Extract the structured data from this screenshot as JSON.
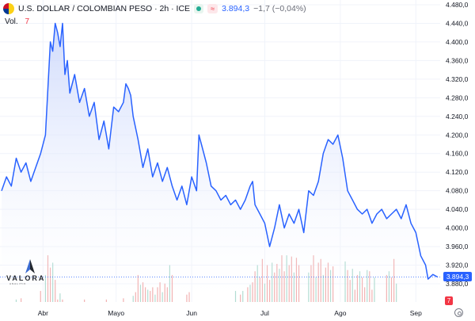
{
  "header": {
    "title": "U.S. DOLLAR / COLOMBIAN PESO · 2h · ICE",
    "last_price": "3.894,3",
    "change": "−1,7 (−0,04%)"
  },
  "volume_label": "Vol.",
  "volume_value": "7",
  "logo": {
    "name": "VALORA",
    "subtitle": "ANALITIK"
  },
  "last_price_tag": "3.894,3",
  "volume_tag": "7",
  "colors": {
    "line": "#2962ff",
    "area_top": "#c7d4fb",
    "volume_up": "#f0a8a8",
    "volume_down": "#a8d8cc",
    "grid": "#f0f3fa"
  },
  "chart_data": {
    "type": "area",
    "title": "U.S. DOLLAR / COLOMBIAN PESO · 2h · ICE",
    "xlabel": "",
    "ylabel": "",
    "ylim": [
      3860,
      4480
    ],
    "yticks": [
      3880,
      3920,
      3960,
      4000,
      4040,
      4080,
      4120,
      4160,
      4200,
      4240,
      4280,
      4320,
      4360,
      4400,
      4440,
      4480
    ],
    "ytick_labels": [
      "3.880,0",
      "3.920,0",
      "3.960,0",
      "4.000,0",
      "4.040,0",
      "4.080,0",
      "4.120,0",
      "4.160,0",
      "4.200,0",
      "4.240,0",
      "4.280,0",
      "4.320,0",
      "4.360,0",
      "4.400,0",
      "4.440,0",
      "4.480,0"
    ],
    "xlim": [
      0,
      179
    ],
    "xticks": [
      {
        "x": 17,
        "label": "Abr"
      },
      {
        "x": 47,
        "label": "Mayo"
      },
      {
        "x": 78,
        "label": "Jun"
      },
      {
        "x": 108,
        "label": "Jul"
      },
      {
        "x": 139,
        "label": "Ago"
      },
      {
        "x": 170,
        "label": "Sep"
      }
    ],
    "grid": true,
    "series": [
      {
        "values": [
          [
            0,
            4080
          ],
          [
            2,
            4110
          ],
          [
            4,
            4090
          ],
          [
            6,
            4150
          ],
          [
            8,
            4120
          ],
          [
            10,
            4140
          ],
          [
            12,
            4100
          ],
          [
            14,
            4130
          ],
          [
            16,
            4160
          ],
          [
            18,
            4200
          ],
          [
            19,
            4300
          ],
          [
            20,
            4400
          ],
          [
            21,
            4380
          ],
          [
            22,
            4440
          ],
          [
            23,
            4420
          ],
          [
            24,
            4390
          ],
          [
            25,
            4440
          ],
          [
            26,
            4330
          ],
          [
            27,
            4360
          ],
          [
            28,
            4290
          ],
          [
            30,
            4330
          ],
          [
            32,
            4270
          ],
          [
            34,
            4300
          ],
          [
            36,
            4240
          ],
          [
            38,
            4270
          ],
          [
            40,
            4190
          ],
          [
            42,
            4230
          ],
          [
            44,
            4170
          ],
          [
            46,
            4260
          ],
          [
            48,
            4250
          ],
          [
            50,
            4270
          ],
          [
            51,
            4310
          ],
          [
            52,
            4300
          ],
          [
            53,
            4285
          ],
          [
            54,
            4240
          ],
          [
            56,
            4190
          ],
          [
            58,
            4130
          ],
          [
            60,
            4170
          ],
          [
            62,
            4110
          ],
          [
            64,
            4140
          ],
          [
            66,
            4100
          ],
          [
            68,
            4130
          ],
          [
            70,
            4090
          ],
          [
            72,
            4060
          ],
          [
            74,
            4090
          ],
          [
            76,
            4050
          ],
          [
            78,
            4110
          ],
          [
            80,
            4080
          ],
          [
            81,
            4200
          ],
          [
            82,
            4180
          ],
          [
            84,
            4140
          ],
          [
            86,
            4090
          ],
          [
            88,
            4080
          ],
          [
            90,
            4060
          ],
          [
            92,
            4070
          ],
          [
            94,
            4050
          ],
          [
            96,
            4060
          ],
          [
            98,
            4040
          ],
          [
            100,
            4060
          ],
          [
            102,
            4090
          ],
          [
            103,
            4100
          ],
          [
            104,
            4050
          ],
          [
            106,
            4030
          ],
          [
            108,
            4010
          ],
          [
            110,
            3960
          ],
          [
            112,
            4000
          ],
          [
            114,
            4050
          ],
          [
            116,
            4000
          ],
          [
            118,
            4030
          ],
          [
            120,
            4010
          ],
          [
            122,
            4040
          ],
          [
            124,
            3990
          ],
          [
            126,
            4080
          ],
          [
            128,
            4070
          ],
          [
            130,
            4100
          ],
          [
            132,
            4160
          ],
          [
            134,
            4190
          ],
          [
            136,
            4180
          ],
          [
            138,
            4200
          ],
          [
            140,
            4150
          ],
          [
            142,
            4080
          ],
          [
            144,
            4060
          ],
          [
            146,
            4040
          ],
          [
            148,
            4030
          ],
          [
            150,
            4040
          ],
          [
            152,
            4010
          ],
          [
            154,
            4030
          ],
          [
            156,
            4040
          ],
          [
            158,
            4020
          ],
          [
            160,
            4030
          ],
          [
            162,
            4040
          ],
          [
            164,
            4020
          ],
          [
            166,
            4050
          ],
          [
            168,
            4010
          ],
          [
            170,
            3990
          ],
          [
            172,
            3940
          ],
          [
            174,
            3920
          ],
          [
            175,
            3890
          ],
          [
            177,
            3900
          ],
          [
            179,
            3894.3
          ]
        ]
      }
    ],
    "volume": [
      0,
      0,
      0,
      0,
      0,
      0,
      2,
      0,
      3,
      0,
      0,
      0,
      0,
      0,
      0,
      0,
      9,
      0,
      22,
      38,
      28,
      32,
      18,
      2,
      7,
      2,
      0,
      0,
      0,
      0,
      0,
      0,
      0,
      0,
      2,
      0,
      0,
      0,
      0,
      0,
      0,
      0,
      0,
      2,
      0,
      0,
      0,
      0,
      0,
      0,
      3,
      0,
      0,
      0,
      5,
      8,
      22,
      14,
      16,
      12,
      10,
      9,
      12,
      6,
      12,
      16,
      8,
      15,
      12,
      30,
      22,
      0,
      0,
      0,
      0,
      0,
      6,
      8,
      0,
      0,
      0,
      0,
      0,
      0,
      0,
      0,
      0,
      0,
      0,
      0,
      0,
      0,
      0,
      0,
      0,
      0,
      9,
      0,
      6,
      9,
      0,
      12,
      14,
      16,
      25,
      30,
      20,
      35,
      15,
      30,
      18,
      32,
      24,
      31,
      27,
      38,
      25,
      38,
      30,
      37,
      24,
      36,
      30,
      0,
      0,
      0,
      24,
      30,
      38,
      20,
      32,
      35,
      22,
      28,
      32,
      26,
      29,
      0,
      0,
      0,
      0,
      33,
      26,
      18,
      27,
      10,
      22,
      25,
      20,
      12,
      26,
      25,
      10,
      20,
      0,
      0,
      0,
      0,
      22,
      25,
      20,
      35,
      15,
      0,
      0,
      0,
      0,
      0,
      0,
      0,
      0,
      0,
      0,
      0,
      0,
      0,
      0,
      0,
      0
    ]
  }
}
